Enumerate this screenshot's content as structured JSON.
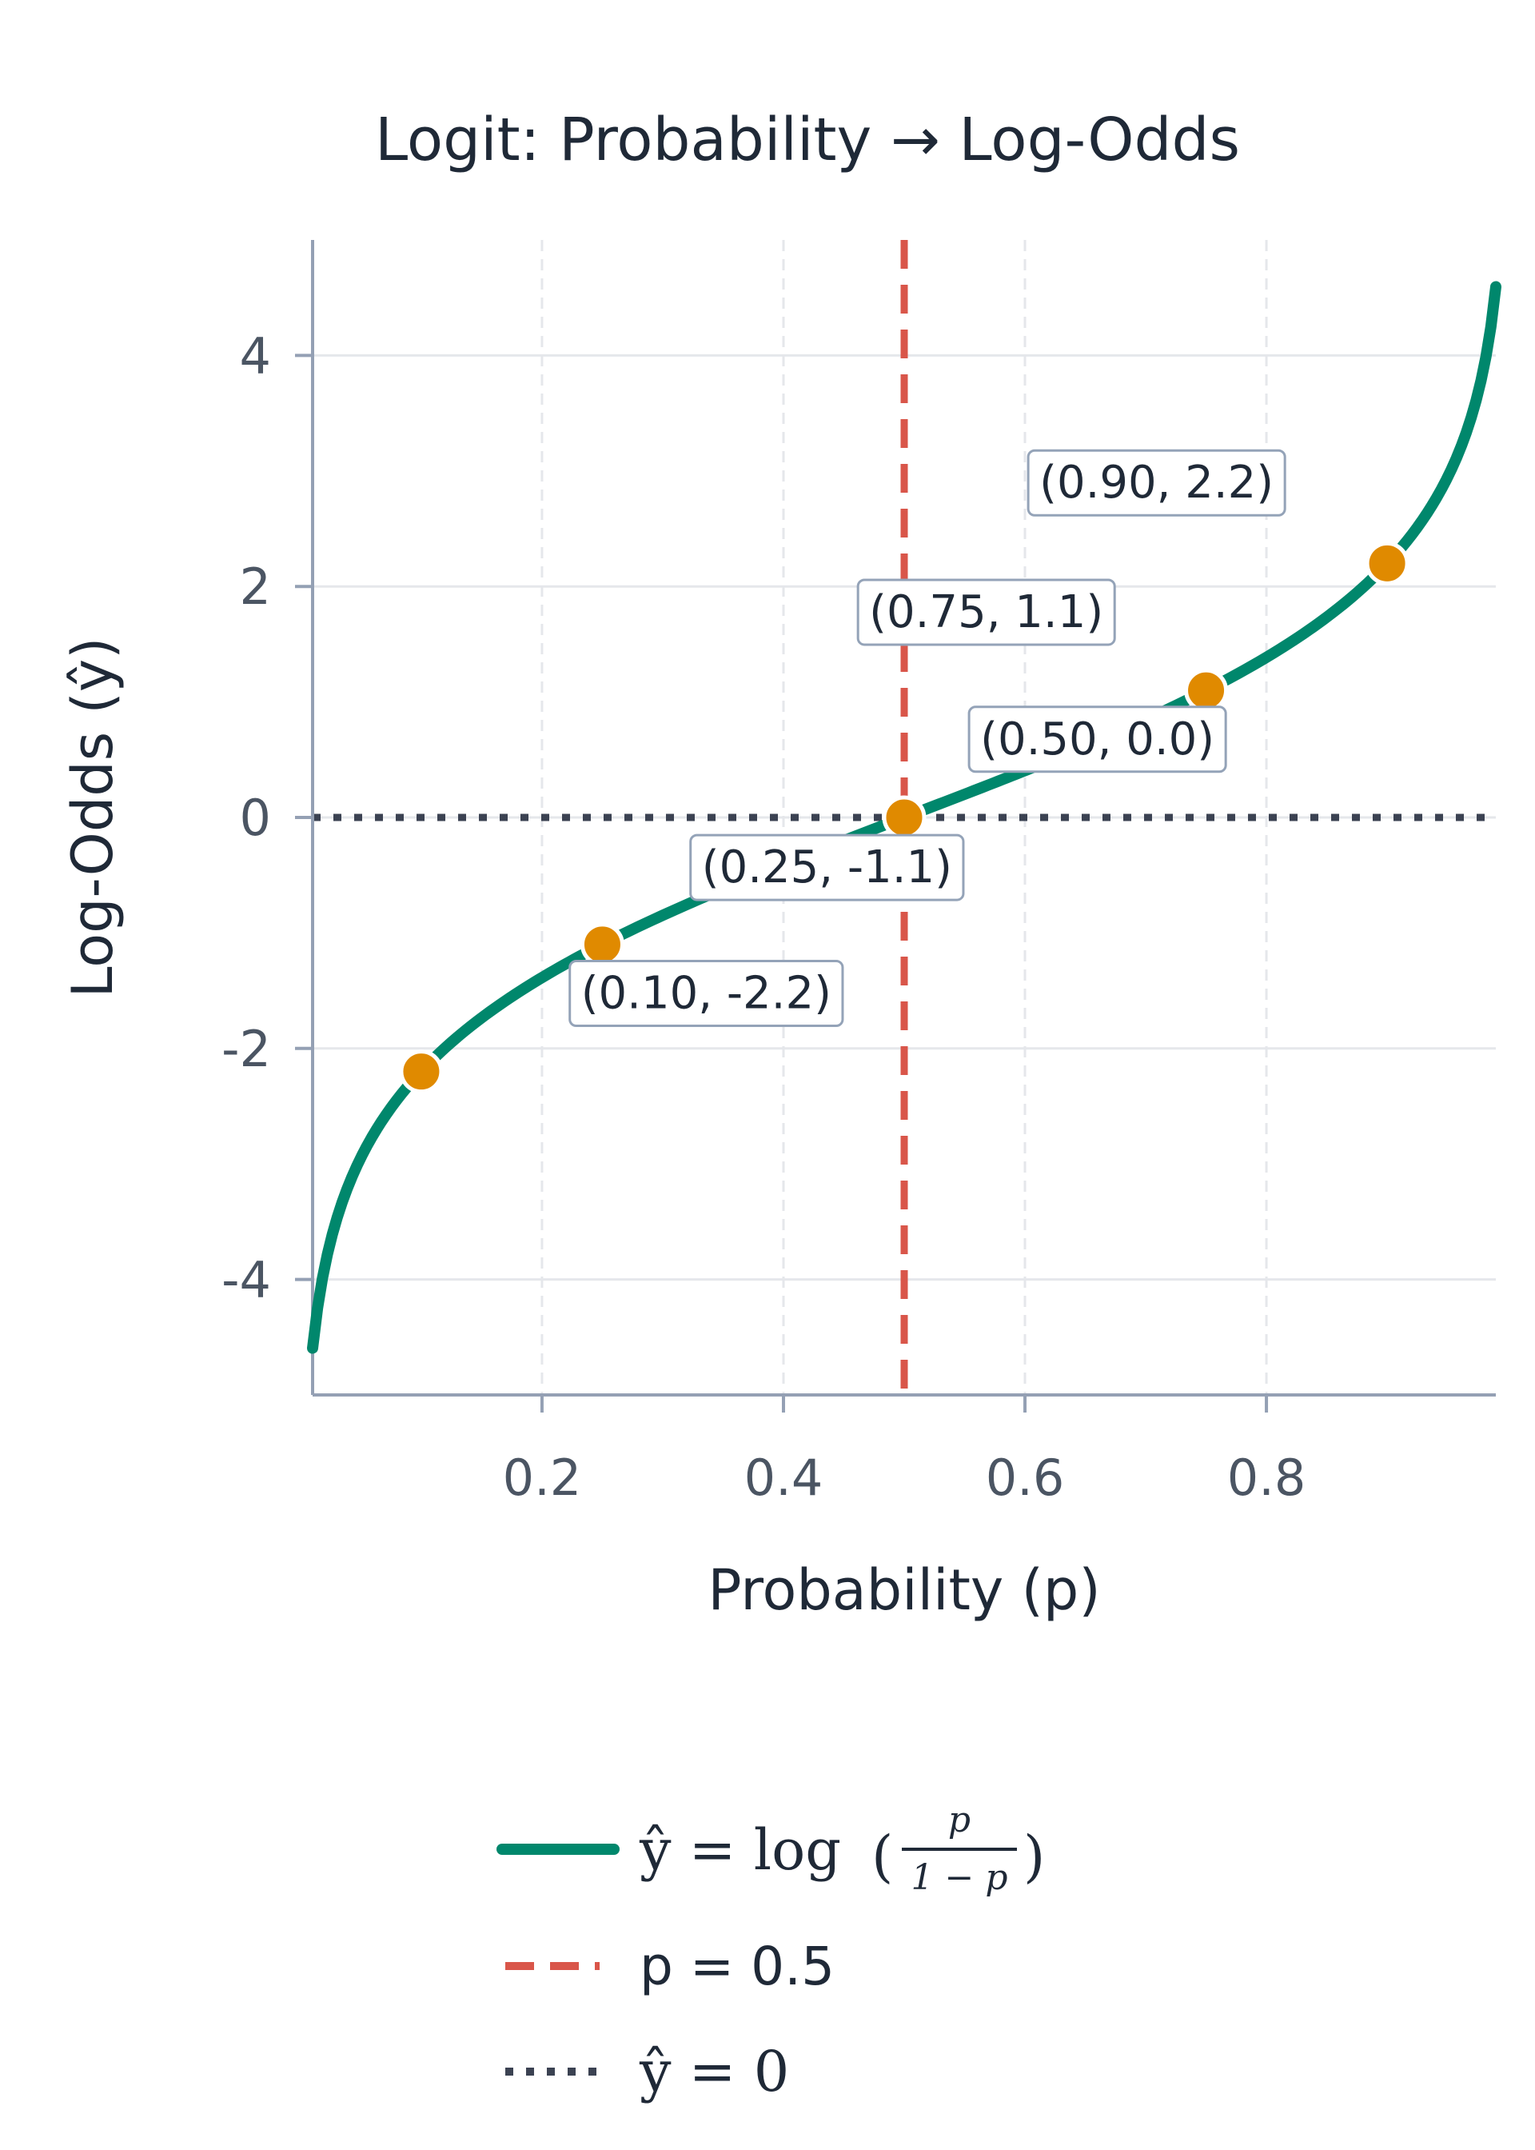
{
  "colors": {
    "curve": "#00876c",
    "vline": "#d9564a",
    "hline": "#3b4252",
    "point": "#e08a00",
    "point_edge": "#ffffff",
    "grid": "#e5e7eb",
    "axis": "#94a0b4",
    "annotation_border": "#94a3b8"
  },
  "chart_data": {
    "type": "line",
    "title": "Logit: Probability → Log-Odds",
    "xlabel": "Probability (p)",
    "ylabel": "Log-Odds (ŷ)",
    "xlim": [
      0.01,
      0.99
    ],
    "ylim": [
      -5,
      5
    ],
    "xticks": [
      0.2,
      0.4,
      0.6,
      0.8
    ],
    "xtick_labels": [
      "0.2",
      "0.4",
      "0.6",
      "0.8"
    ],
    "yticks": [
      -4,
      -2,
      0,
      2,
      4
    ],
    "ytick_labels": [
      "-4",
      "-2",
      "0",
      "2",
      "4"
    ],
    "grid": true,
    "series": [
      {
        "kind": "curve",
        "function": "logit",
        "x": [
          0.01,
          0.02,
          0.05,
          0.1,
          0.2,
          0.3,
          0.4,
          0.5,
          0.6,
          0.7,
          0.8,
          0.9,
          0.95,
          0.98,
          0.99
        ],
        "y": [
          -4.6,
          -3.89,
          -2.94,
          -2.2,
          -1.39,
          -0.85,
          -0.41,
          0.0,
          0.41,
          0.85,
          1.39,
          2.2,
          2.94,
          3.89,
          4.6
        ]
      },
      {
        "kind": "points",
        "x": [
          0.1,
          0.25,
          0.5,
          0.75,
          0.9
        ],
        "y": [
          -2.2,
          -1.1,
          0.0,
          1.1,
          2.2
        ]
      }
    ],
    "reference_lines": [
      {
        "orientation": "vertical",
        "value": 0.5,
        "style": "dashed"
      },
      {
        "orientation": "horizontal",
        "value": 0,
        "style": "dotted"
      }
    ],
    "annotations": [
      {
        "text": "(0.10, -2.2)",
        "x": 0.336,
        "y": -1.52
      },
      {
        "text": "(0.25, -1.1)",
        "x": 0.436,
        "y": -0.43
      },
      {
        "text": "(0.50, 0.0)",
        "x": 0.66,
        "y": 0.68
      },
      {
        "text": "(0.75, 1.1)",
        "x": 0.568,
        "y": 1.78
      },
      {
        "text": "(0.90, 2.2)",
        "x": 0.709,
        "y": 2.9
      }
    ],
    "legend": {
      "placement": "bottom-center",
      "entries": [
        {
          "label_parts": [
            "ŷ = log",
            "p",
            "1 − p"
          ]
        },
        {
          "label": "p = 0.5"
        },
        {
          "label": "ŷ = 0"
        }
      ]
    }
  }
}
